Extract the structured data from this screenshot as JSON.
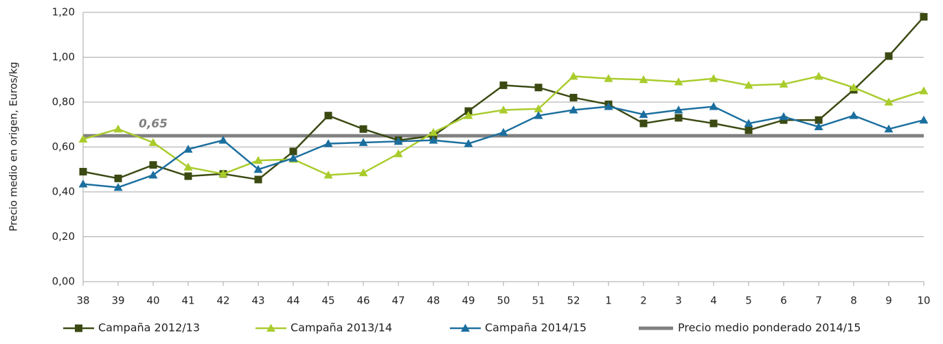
{
  "chart_data": {
    "type": "line",
    "y_label": "Precio medio en origen, Euros/kg",
    "categories": [
      "38",
      "39",
      "40",
      "41",
      "42",
      "43",
      "44",
      "45",
      "46",
      "47",
      "48",
      "49",
      "50",
      "51",
      "52",
      "1",
      "2",
      "3",
      "4",
      "5",
      "6",
      "7",
      "8",
      "9",
      "10"
    ],
    "series": [
      {
        "name": "Campaña 2012/13",
        "color": "#3b4a12",
        "marker": "square",
        "values": [
          0.49,
          0.46,
          0.52,
          0.47,
          0.48,
          0.455,
          0.58,
          0.74,
          0.68,
          0.63,
          0.65,
          0.76,
          0.875,
          0.865,
          0.82,
          0.79,
          0.705,
          0.73,
          0.705,
          0.675,
          0.72,
          0.72,
          0.855,
          1.005,
          1.18
        ]
      },
      {
        "name": "Campaña 2013/14",
        "color": "#a9cc2c",
        "marker": "triangle",
        "values": [
          0.635,
          0.68,
          0.62,
          0.51,
          0.48,
          0.54,
          0.545,
          0.475,
          0.485,
          0.57,
          0.665,
          0.74,
          0.765,
          0.77,
          0.915,
          0.905,
          0.9,
          0.89,
          0.905,
          0.875,
          0.88,
          0.915,
          0.865,
          0.8,
          0.85
        ]
      },
      {
        "name": "Campaña 2014/15",
        "color": "#1b6f9f",
        "marker": "triangle",
        "values": [
          0.435,
          0.42,
          0.475,
          0.59,
          0.63,
          0.5,
          0.55,
          0.615,
          0.62,
          0.625,
          0.63,
          0.615,
          0.665,
          0.74,
          0.765,
          0.78,
          0.745,
          0.765,
          0.78,
          0.705,
          0.735,
          0.69,
          0.74,
          0.68,
          0.72
        ]
      }
    ],
    "reference_line": {
      "name": "Precio medio ponderado 2014/15",
      "value": 0.65,
      "value_label": "0,65",
      "color": "#808080"
    },
    "ylim": [
      0,
      1.2
    ],
    "yticks": [
      {
        "value": 0,
        "label": "0,00"
      },
      {
        "value": 0.2,
        "label": "0,20"
      },
      {
        "value": 0.4,
        "label": "0,40"
      },
      {
        "value": 0.6,
        "label": "0,60"
      },
      {
        "value": 0.8,
        "label": "0,80"
      },
      {
        "value": 1.0,
        "label": "1,00"
      },
      {
        "value": 1.2,
        "label": "1,20"
      }
    ],
    "grid": true,
    "legend": "bottom"
  }
}
